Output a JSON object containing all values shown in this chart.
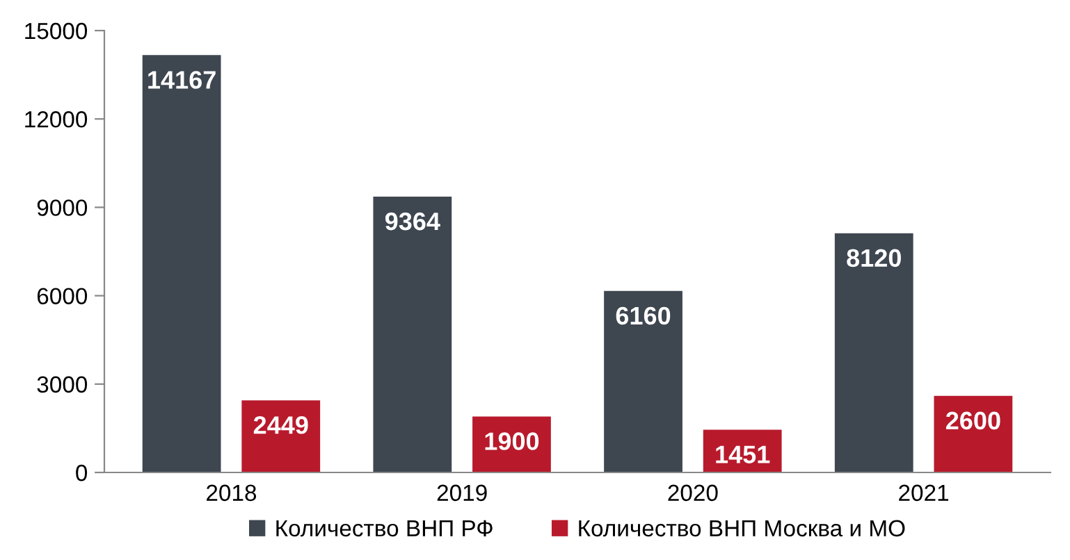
{
  "chart_data": {
    "type": "bar",
    "categories": [
      "2018",
      "2019",
      "2020",
      "2021"
    ],
    "series": [
      {
        "name": "Количество ВНП РФ",
        "color": "#3e4650",
        "values": [
          14167,
          9364,
          6160,
          8120
        ]
      },
      {
        "name": "Количество ВНП Москва и МО",
        "color": "#b81a2c",
        "values": [
          2449,
          1900,
          1451,
          2600
        ]
      }
    ],
    "ylim": [
      0,
      15000
    ],
    "yticks": [
      0,
      3000,
      6000,
      9000,
      12000,
      15000
    ],
    "grid": false,
    "legend": "bottom",
    "data_labels": true
  }
}
